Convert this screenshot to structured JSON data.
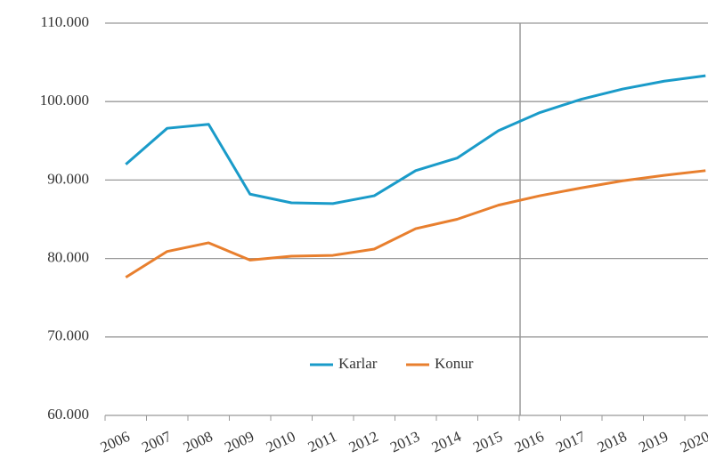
{
  "chart_data": {
    "type": "line",
    "categories": [
      "2006",
      "2007",
      "2008",
      "2009",
      "2010",
      "2011",
      "2012",
      "2013",
      "2014",
      "2015",
      "2016",
      "2017",
      "2018",
      "2019",
      "2020"
    ],
    "series": [
      {
        "name": "Karlar",
        "color": "#1a9bc9",
        "values": [
          92000,
          96600,
          97100,
          88200,
          87100,
          87000,
          88000,
          91200,
          92800,
          96300,
          98600,
          100300,
          101600,
          102600,
          103300
        ]
      },
      {
        "name": "Konur",
        "color": "#e87f2e",
        "values": [
          77600,
          80900,
          82000,
          79800,
          80300,
          80400,
          81200,
          83800,
          85000,
          86800,
          88000,
          89000,
          89900,
          90600,
          91200
        ]
      }
    ],
    "ylim": [
      60000,
      110000
    ],
    "yticks": [
      {
        "value": 60000,
        "label": "60.000"
      },
      {
        "value": 70000,
        "label": "70.000"
      },
      {
        "value": 80000,
        "label": "80.000"
      },
      {
        "value": 90000,
        "label": "90.000"
      },
      {
        "value": 100000,
        "label": "100.000"
      },
      {
        "value": 110000,
        "label": "110.000"
      }
    ],
    "grid": true
  }
}
